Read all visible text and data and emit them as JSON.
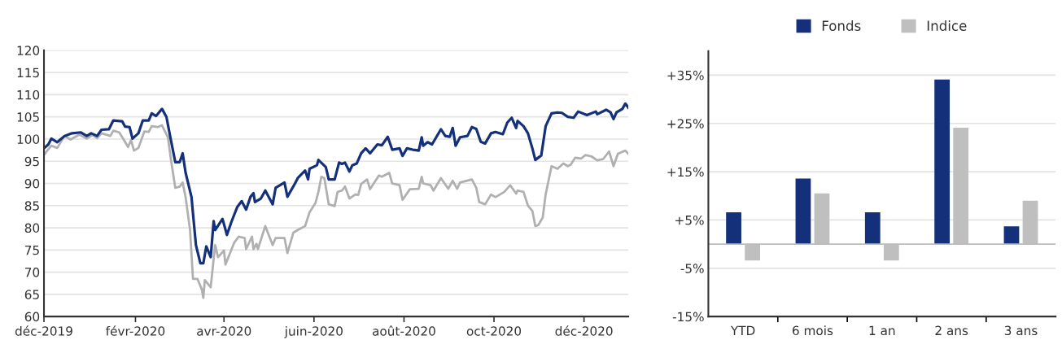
{
  "chart_data": [
    {
      "type": "line",
      "line_style": "solid",
      "marker": "none",
      "grid": "y",
      "legend": false,
      "xlim": [
        "2019-12-01",
        "2020-12-31"
      ],
      "ylim": [
        60,
        120
      ],
      "yticks": [
        60,
        65,
        70,
        75,
        80,
        85,
        90,
        95,
        100,
        105,
        110,
        115,
        120
      ],
      "xticks": [
        {
          "value": "2019-12-01",
          "label": "déc-2019"
        },
        {
          "value": "2020-02-01",
          "label": "févr-2020"
        },
        {
          "value": "2020-04-01",
          "label": "avr-2020"
        },
        {
          "value": "2020-06-01",
          "label": "juin-2020"
        },
        {
          "value": "2020-08-01",
          "label": "août-2020"
        },
        {
          "value": "2020-10-01",
          "label": "oct-2020"
        },
        {
          "value": "2020-12-01",
          "label": "déc-2020"
        }
      ],
      "series": [
        {
          "color": "#b0b0b0",
          "x": [
            "2019-12-01",
            "2019-12-03",
            "2019-12-06",
            "2019-12-10",
            "2019-12-15",
            "2019-12-19",
            "2019-12-25",
            "2019-12-30",
            "2020-01-03",
            "2020-01-06",
            "2020-01-09",
            "2020-01-15",
            "2020-01-17",
            "2020-01-21",
            "2020-01-24",
            "2020-01-27",
            "2020-01-29",
            "2020-01-31",
            "2020-02-03",
            "2020-02-07",
            "2020-02-10",
            "2020-02-12",
            "2020-02-16",
            "2020-02-19",
            "2020-02-23",
            "2020-02-25",
            "2020-02-28",
            "2020-03-02",
            "2020-03-04",
            "2020-03-06",
            "2020-03-09",
            "2020-03-11",
            "2020-03-14",
            "2020-03-17",
            "2020-03-18",
            "2020-03-19",
            "2020-03-23",
            "2020-03-26",
            "2020-03-28",
            "2020-04-01",
            "2020-04-02",
            "2020-04-08",
            "2020-04-11",
            "2020-04-15",
            "2020-04-16",
            "2020-04-20",
            "2020-04-21",
            "2020-04-23",
            "2020-04-24",
            "2020-04-29",
            "2020-05-04",
            "2020-05-06",
            "2020-05-12",
            "2020-05-14",
            "2020-05-18",
            "2020-05-21",
            "2020-05-26",
            "2020-05-29",
            "2020-06-02",
            "2020-06-04",
            "2020-06-06",
            "2020-06-08",
            "2020-06-11",
            "2020-06-15",
            "2020-06-17",
            "2020-06-20",
            "2020-06-22",
            "2020-06-25",
            "2020-06-29",
            "2020-07-01",
            "2020-07-03",
            "2020-07-07",
            "2020-07-09",
            "2020-07-15",
            "2020-07-17",
            "2020-07-22",
            "2020-07-24",
            "2020-07-29",
            "2020-07-31",
            "2020-08-05",
            "2020-08-11",
            "2020-08-13",
            "2020-08-14",
            "2020-08-19",
            "2020-08-21",
            "2020-08-26",
            "2020-08-31",
            "2020-09-03",
            "2020-09-06",
            "2020-09-08",
            "2020-09-16",
            "2020-09-19",
            "2020-09-21",
            "2020-09-25",
            "2020-09-29",
            "2020-10-02",
            "2020-10-08",
            "2020-10-12",
            "2020-10-16",
            "2020-10-17",
            "2020-10-21",
            "2020-10-24",
            "2020-10-27",
            "2020-10-29",
            "2020-10-31",
            "2020-11-03",
            "2020-11-05",
            "2020-11-09",
            "2020-11-13",
            "2020-11-17",
            "2020-11-20",
            "2020-11-22",
            "2020-11-25",
            "2020-11-29",
            "2020-12-02",
            "2020-12-06",
            "2020-12-10",
            "2020-12-14",
            "2020-12-18",
            "2020-12-21",
            "2020-12-24",
            "2020-12-29",
            "2020-12-31"
          ],
          "values": [
            96.4,
            97.3,
            98.5,
            98.0,
            100.7,
            99.9,
            101.0,
            100.1,
            100.9,
            100.2,
            101.3,
            100.7,
            101.9,
            101.5,
            99.9,
            98.2,
            99.8,
            97.4,
            98.0,
            101.7,
            101.6,
            102.9,
            102.7,
            103.1,
            100.4,
            95.5,
            89.0,
            89.3,
            90.2,
            86.9,
            79.5,
            68.5,
            68.5,
            66.1,
            64.2,
            68.2,
            66.6,
            76.1,
            73.4,
            74.9,
            71.7,
            76.7,
            78.0,
            77.7,
            75.2,
            78.0,
            75.2,
            76.4,
            75.2,
            80.4,
            76.1,
            77.7,
            77.7,
            74.3,
            78.9,
            79.5,
            80.4,
            83.5,
            85.6,
            88.1,
            91.5,
            91.2,
            85.3,
            84.9,
            88.1,
            88.4,
            89.3,
            86.6,
            87.5,
            87.4,
            89.9,
            90.9,
            88.7,
            91.8,
            91.5,
            92.4,
            90.0,
            89.6,
            86.3,
            88.7,
            88.8,
            91.5,
            90.0,
            89.6,
            88.4,
            91.2,
            88.8,
            90.6,
            88.8,
            90.2,
            90.9,
            89.0,
            85.8,
            85.3,
            87.5,
            86.9,
            88.1,
            89.6,
            87.7,
            88.4,
            88.1,
            85.0,
            83.8,
            80.4,
            80.6,
            82.3,
            87.5,
            93.9,
            93.3,
            94.5,
            93.9,
            94.2,
            95.8,
            95.6,
            96.4,
            96.1,
            95.2,
            95.5,
            97.2,
            93.9,
            96.7,
            97.4,
            96.7
          ]
        },
        {
          "color": "#14307a",
          "x": [
            "2019-12-01",
            "2019-12-04",
            "2019-12-06",
            "2019-12-10",
            "2019-12-15",
            "2019-12-20",
            "2019-12-26",
            "2019-12-30",
            "2020-01-02",
            "2020-01-06",
            "2020-01-09",
            "2020-01-14",
            "2020-01-17",
            "2020-01-23",
            "2020-01-25",
            "2020-01-28",
            "2020-01-30",
            "2020-02-03",
            "2020-02-06",
            "2020-02-10",
            "2020-02-12",
            "2020-02-15",
            "2020-02-19",
            "2020-02-22",
            "2020-02-25",
            "2020-02-28",
            "2020-03-02",
            "2020-03-04",
            "2020-03-06",
            "2020-03-10",
            "2020-03-11",
            "2020-03-13",
            "2020-03-16",
            "2020-03-18",
            "2020-03-20",
            "2020-03-23",
            "2020-03-25",
            "2020-03-26",
            "2020-03-31",
            "2020-04-03",
            "2020-04-06",
            "2020-04-10",
            "2020-04-13",
            "2020-04-16",
            "2020-04-19",
            "2020-04-21",
            "2020-04-22",
            "2020-04-26",
            "2020-04-29",
            "2020-05-04",
            "2020-05-06",
            "2020-05-12",
            "2020-05-14",
            "2020-05-19",
            "2020-05-21",
            "2020-05-26",
            "2020-05-28",
            "2020-05-29",
            "2020-06-03",
            "2020-06-04",
            "2020-06-09",
            "2020-06-11",
            "2020-06-15",
            "2020-06-18",
            "2020-06-20",
            "2020-06-22",
            "2020-06-25",
            "2020-06-27",
            "2020-06-30",
            "2020-07-03",
            "2020-07-06",
            "2020-07-09",
            "2020-07-14",
            "2020-07-17",
            "2020-07-21",
            "2020-07-24",
            "2020-07-29",
            "2020-07-31",
            "2020-08-03",
            "2020-08-07",
            "2020-08-11",
            "2020-08-13",
            "2020-08-14",
            "2020-08-17",
            "2020-08-20",
            "2020-08-26",
            "2020-08-29",
            "2020-09-01",
            "2020-09-03",
            "2020-09-05",
            "2020-09-08",
            "2020-09-13",
            "2020-09-16",
            "2020-09-19",
            "2020-09-22",
            "2020-09-25",
            "2020-09-29",
            "2020-10-02",
            "2020-10-07",
            "2020-10-10",
            "2020-10-13",
            "2020-10-16",
            "2020-10-17",
            "2020-10-21",
            "2020-10-24",
            "2020-10-27",
            "2020-10-29",
            "2020-11-02",
            "2020-11-05",
            "2020-11-09",
            "2020-11-13",
            "2020-11-16",
            "2020-11-20",
            "2020-11-24",
            "2020-11-27",
            "2020-12-03",
            "2020-12-09",
            "2020-12-10",
            "2020-12-16",
            "2020-12-19",
            "2020-12-21",
            "2020-12-23",
            "2020-12-27",
            "2020-12-29",
            "2020-12-31"
          ],
          "values": [
            97.9,
            98.8,
            100.1,
            99.3,
            100.7,
            101.3,
            101.5,
            100.7,
            101.3,
            100.7,
            102.1,
            102.2,
            104.2,
            104.0,
            102.8,
            102.7,
            100.1,
            101.3,
            104.2,
            104.2,
            105.8,
            105.2,
            106.8,
            105.0,
            99.8,
            94.8,
            94.8,
            96.8,
            92.4,
            86.9,
            83.2,
            76.1,
            72.0,
            72.0,
            75.8,
            73.4,
            81.5,
            79.5,
            82.0,
            78.4,
            81.3,
            84.7,
            86.0,
            84.1,
            87.0,
            87.8,
            85.8,
            86.6,
            88.4,
            85.3,
            89.0,
            90.2,
            87.0,
            89.9,
            91.2,
            92.9,
            90.9,
            93.3,
            94.1,
            95.3,
            93.7,
            90.9,
            90.9,
            94.7,
            94.4,
            94.7,
            92.7,
            94.1,
            94.5,
            96.8,
            97.9,
            96.8,
            98.8,
            98.6,
            100.5,
            97.6,
            97.9,
            96.2,
            97.9,
            97.6,
            97.4,
            100.4,
            98.5,
            99.3,
            98.8,
            102.2,
            100.7,
            100.5,
            102.5,
            98.5,
            100.4,
            100.7,
            102.7,
            102.3,
            99.4,
            99.0,
            101.3,
            101.6,
            101.1,
            103.7,
            104.8,
            102.5,
            104.1,
            102.9,
            101.3,
            97.9,
            95.3,
            96.3,
            102.9,
            105.8,
            106.0,
            105.9,
            105.0,
            104.8,
            106.2,
            105.4,
            106.2,
            105.6,
            106.6,
            106.0,
            104.5,
            106.0,
            106.8,
            108.0,
            107.1
          ]
        }
      ]
    },
    {
      "type": "bar",
      "grid": "y",
      "legend": "top",
      "categories": [
        "YTD",
        "6 mois",
        "1 an",
        "2 ans",
        "3 ans"
      ],
      "ylim": [
        -15,
        40
      ],
      "yticks": [
        {
          "value": -15,
          "label": "-15%"
        },
        {
          "value": -5,
          "label": "-5%"
        },
        {
          "value": 5,
          "label": "+5%"
        },
        {
          "value": 15,
          "label": "+15%"
        },
        {
          "value": 25,
          "label": "+25%"
        },
        {
          "value": 35,
          "label": "+35%"
        }
      ],
      "series": [
        {
          "name": "Fonds",
          "color": "#14307a",
          "values": [
            6.6,
            13.6,
            6.6,
            34.1,
            3.7
          ]
        },
        {
          "name": "Indice",
          "color": "#bfbfbf",
          "values": [
            -3.4,
            10.5,
            -3.4,
            24.1,
            9.0
          ]
        }
      ]
    }
  ]
}
